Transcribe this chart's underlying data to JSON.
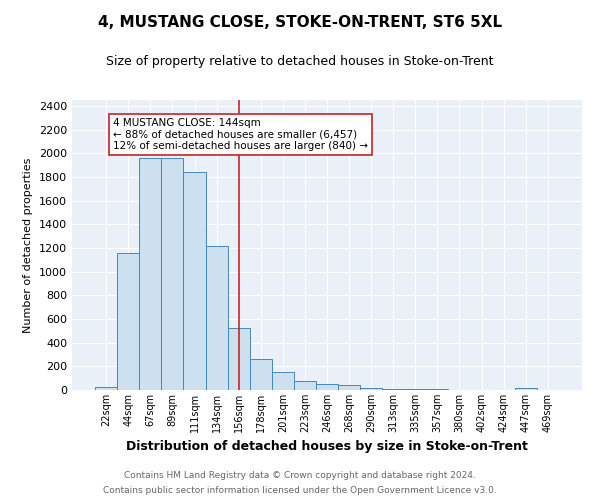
{
  "title": "4, MUSTANG CLOSE, STOKE-ON-TRENT, ST6 5XL",
  "subtitle": "Size of property relative to detached houses in Stoke-on-Trent",
  "xlabel": "Distribution of detached houses by size in Stoke-on-Trent",
  "ylabel": "Number of detached properties",
  "footnote1": "Contains HM Land Registry data © Crown copyright and database right 2024.",
  "footnote2": "Contains public sector information licensed under the Open Government Licence v3.0.",
  "bar_labels": [
    "22sqm",
    "44sqm",
    "67sqm",
    "89sqm",
    "111sqm",
    "134sqm",
    "156sqm",
    "178sqm",
    "201sqm",
    "223sqm",
    "246sqm",
    "268sqm",
    "290sqm",
    "313sqm",
    "335sqm",
    "357sqm",
    "380sqm",
    "402sqm",
    "424sqm",
    "447sqm",
    "469sqm"
  ],
  "bar_values": [
    25,
    1155,
    1960,
    1960,
    1840,
    1215,
    520,
    265,
    155,
    80,
    50,
    40,
    20,
    12,
    8,
    5,
    3,
    2,
    2,
    20,
    2
  ],
  "bar_color": "#cce0f0",
  "bar_edge_color": "#4488bb",
  "bg_color": "#eaf0f8",
  "vline_x": 6.0,
  "vline_color": "#cc2222",
  "annotation_text": "4 MUSTANG CLOSE: 144sqm\n← 88% of detached houses are smaller (6,457)\n12% of semi-detached houses are larger (840) →",
  "annotation_box_color": "white",
  "annotation_box_edge": "#cc2222",
  "ylim": [
    0,
    2450
  ],
  "yticks": [
    0,
    200,
    400,
    600,
    800,
    1000,
    1200,
    1400,
    1600,
    1800,
    2000,
    2200,
    2400
  ],
  "title_fontsize": 11,
  "subtitle_fontsize": 9,
  "ylabel_fontsize": 8,
  "xlabel_fontsize": 9,
  "tick_fontsize": 8,
  "xtick_fontsize": 7,
  "annot_fontsize": 7.5
}
